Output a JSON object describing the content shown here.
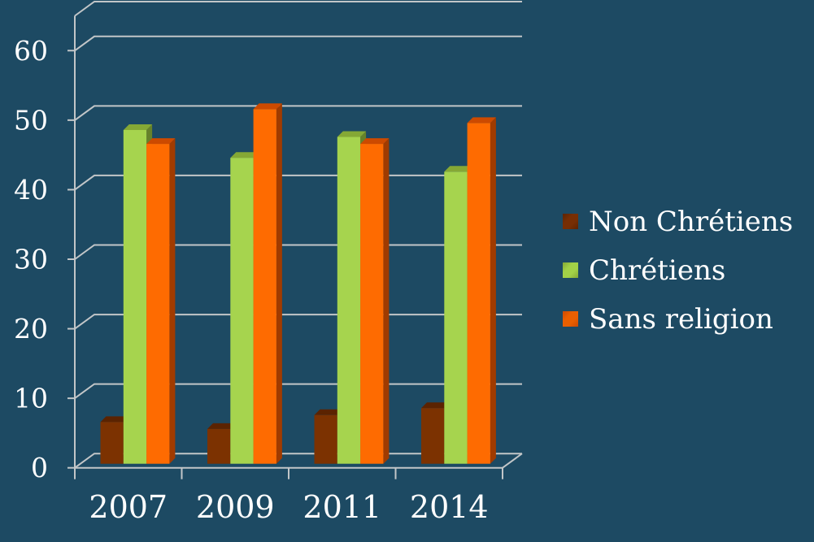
{
  "background_color": "#1D4A63",
  "grid_color": "#C2C6C8",
  "text_color": "#FFFFFF",
  "chart_data": {
    "type": "bar",
    "projection": "3d",
    "title": "",
    "xlabel": "",
    "ylabel": "",
    "categories": [
      "2007",
      "2009",
      "2011",
      "2014"
    ],
    "series": [
      {
        "name": "Non Chrétiens",
        "values": [
          6,
          5,
          7,
          8
        ],
        "color": "#7C3201",
        "top_color": "#5B2301",
        "side_color": "#451A00",
        "legend_color": "#772E04"
      },
      {
        "name": "Chrétiens",
        "values": [
          48,
          44,
          47,
          42
        ],
        "color": "#A6D44E",
        "top_color": "#85A835",
        "side_color": "#66822A",
        "legend_color": "#A2D147"
      },
      {
        "name": "Sans religion",
        "values": [
          46,
          51,
          46,
          49
        ],
        "color": "#FE6B01",
        "top_color": "#CC4A00",
        "side_color": "#A03B00",
        "legend_color": "#E95F00"
      }
    ],
    "y_ticks": [
      0,
      10,
      20,
      30,
      40,
      50,
      60
    ],
    "y_tick_labels": [
      "0",
      "10",
      "20",
      "30",
      "40",
      "50",
      "60"
    ],
    "ylim": [
      0,
      65
    ],
    "grid": true,
    "legend_position": "right"
  }
}
